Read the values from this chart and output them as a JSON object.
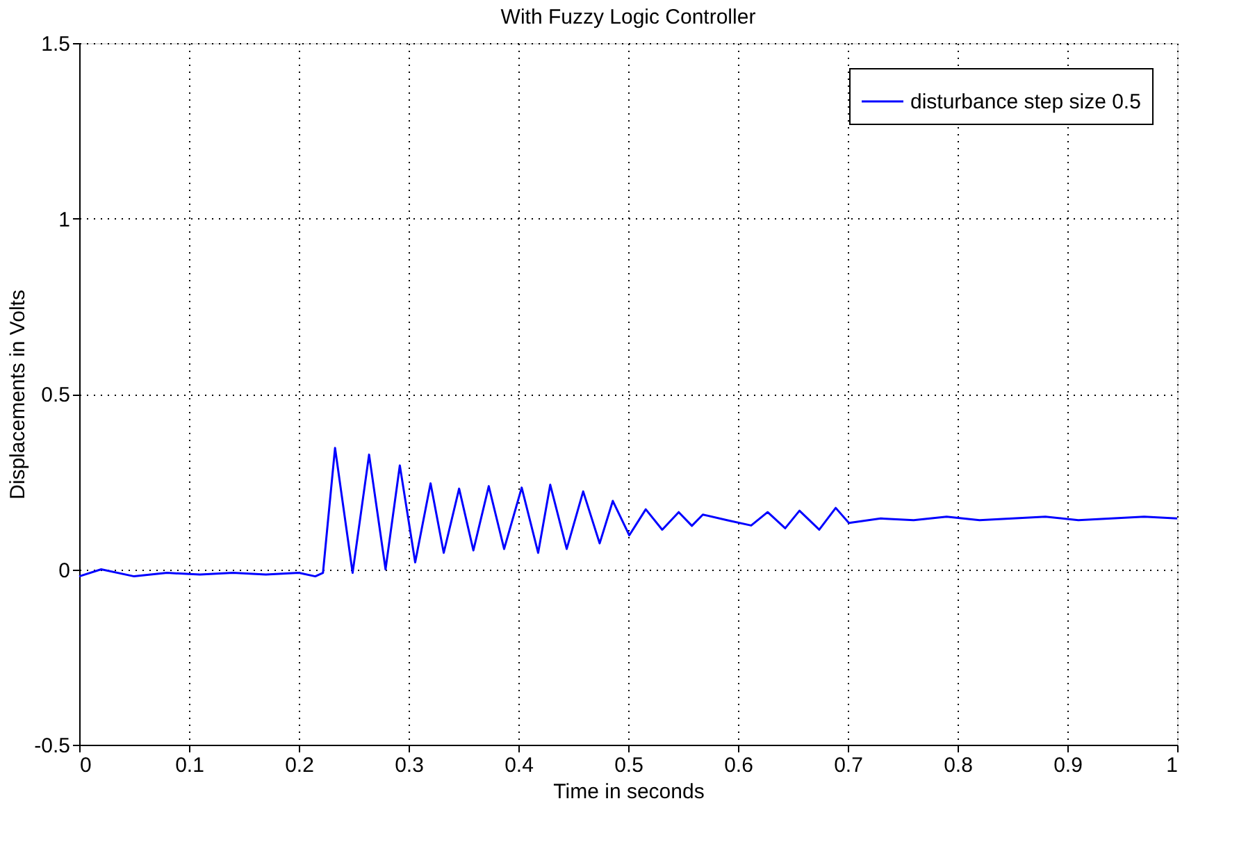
{
  "chart_data": {
    "type": "line",
    "title": "With Fuzzy Logic Controller",
    "xlabel": "Time in seconds",
    "ylabel": "Displacements in Volts",
    "x": [
      0,
      0.02,
      0.05,
      0.08,
      0.11,
      0.14,
      0.17,
      0.2,
      0.215,
      0.222,
      0.233,
      0.249,
      0.264,
      0.279,
      0.292,
      0.306,
      0.32,
      0.332,
      0.346,
      0.359,
      0.373,
      0.387,
      0.403,
      0.418,
      0.429,
      0.444,
      0.459,
      0.474,
      0.486,
      0.501,
      0.516,
      0.531,
      0.546,
      0.558,
      0.568,
      0.59,
      0.612,
      0.627,
      0.643,
      0.656,
      0.674,
      0.689,
      0.701,
      0.73,
      0.76,
      0.79,
      0.82,
      0.85,
      0.88,
      0.91,
      0.94,
      0.97,
      1.0
    ],
    "series": [
      {
        "name": "disturbance step size 0.5",
        "color": "#0000ff",
        "values": [
          -0.02,
          0.0,
          -0.02,
          -0.01,
          -0.015,
          -0.01,
          -0.015,
          -0.01,
          -0.02,
          -0.01,
          0.346,
          -0.01,
          0.327,
          0.0,
          0.296,
          0.02,
          0.245,
          0.047,
          0.23,
          0.054,
          0.237,
          0.058,
          0.233,
          0.047,
          0.241,
          0.058,
          0.222,
          0.074,
          0.195,
          0.097,
          0.171,
          0.113,
          0.163,
          0.124,
          0.156,
          0.14,
          0.125,
          0.163,
          0.117,
          0.167,
          0.113,
          0.175,
          0.132,
          0.145,
          0.14,
          0.15,
          0.14,
          0.145,
          0.15,
          0.14,
          0.145,
          0.15,
          0.145
        ]
      }
    ],
    "xlim": [
      0,
      1
    ],
    "ylim": [
      -0.5,
      1.5
    ],
    "xticks": [
      0,
      0.1,
      0.2,
      0.3,
      0.4,
      0.5,
      0.6,
      0.7,
      0.8,
      0.9,
      1
    ],
    "yticks": [
      -0.5,
      0,
      0.5,
      1,
      1.5
    ],
    "grid": true,
    "legend": "top right",
    "marker": "none",
    "line_style": "solid"
  }
}
